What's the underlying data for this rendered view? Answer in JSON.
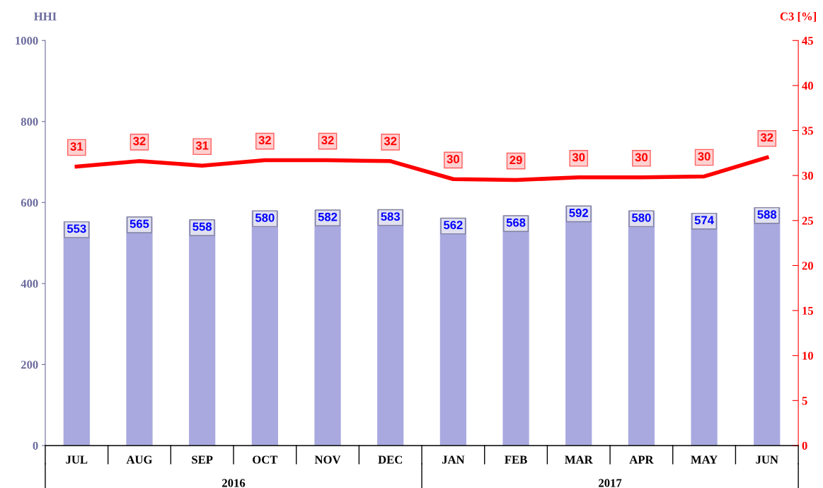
{
  "chart_data": {
    "type": "bar",
    "ylabel": "HHI",
    "y2label": "C3 [%]",
    "categories": [
      "JUL",
      "AUG",
      "SEP",
      "OCT",
      "NOV",
      "DEC",
      "JAN",
      "FEB",
      "MAR",
      "APR",
      "MAY",
      "JUN"
    ],
    "annotations": [
      "2016",
      "2017"
    ],
    "series": [
      {
        "color": "#a9a9e0",
        "values": [
          553,
          565,
          558,
          580,
          582,
          583,
          562,
          568,
          592,
          580,
          574,
          588
        ],
        "value_labels": [
          "553",
          "565",
          "558",
          "580",
          "582",
          "583",
          "562",
          "568",
          "592",
          "580",
          "574",
          "588"
        ]
      },
      {
        "type": "line",
        "axis": "y2",
        "color": "#ff0000",
        "values": [
          31.0,
          31.6,
          31.1,
          31.7,
          31.7,
          31.6,
          29.6,
          29.5,
          29.8,
          29.8,
          29.9,
          32.0
        ],
        "value_labels": [
          "31",
          "32",
          "31",
          "32",
          "32",
          "32",
          "30",
          "29",
          "30",
          "30",
          "30",
          "32"
        ]
      }
    ],
    "ylim": [
      0,
      1000
    ],
    "yticks": [
      0,
      200,
      400,
      600,
      800,
      1000
    ],
    "y2lim": [
      0,
      45
    ],
    "y2ticks": [
      0,
      5,
      10,
      15,
      20,
      25,
      30,
      35,
      40,
      45
    ],
    "grid": false,
    "legend": false
  }
}
